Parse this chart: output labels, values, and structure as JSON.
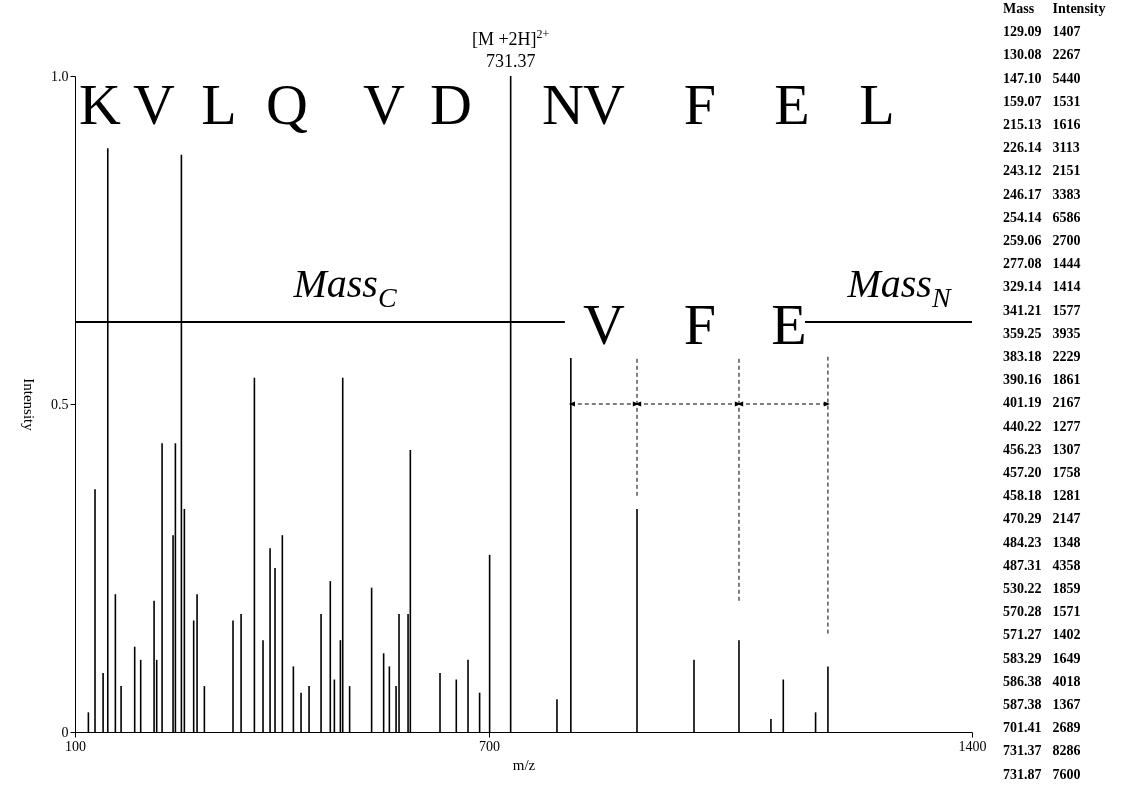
{
  "chart_data": {
    "type": "bar",
    "xlabel": "m/z",
    "ylabel": "Intensity",
    "color": "#000000",
    "x": [
      119.4,
      129,
      140.7,
      147.5,
      158.5,
      166.8,
      186.5,
      195.2,
      214.6,
      218.4,
      226.2,
      242.1,
      245.5,
      254.2,
      258.5,
      272,
      276.9,
      287.5,
      329,
      340.7,
      360,
      372.5,
      382.7,
      389.9,
      400.5,
      416.5,
      427.6,
      439.2,
      456.6,
      470,
      475.9,
      484.6,
      488,
      498,
      529.9,
      547.3,
      555.6,
      565.3,
      569.6,
      582.7,
      586,
      629,
      652.6,
      669.6,
      686.4,
      700.9,
      731.4,
      798.5,
      818.6,
      914.5,
      997.1,
      1062.3,
      1108.6,
      1126.5,
      1173.3,
      1191.2
    ],
    "values": [
      0.03,
      0.37,
      0.09,
      0.89,
      0.21,
      0.07,
      0.13,
      0.11,
      0.2,
      0.11,
      0.44,
      0.3,
      0.44,
      0.88,
      0.34,
      0.17,
      0.21,
      0.07,
      0.17,
      0.18,
      0.54,
      0.14,
      0.28,
      0.25,
      0.3,
      0.1,
      0.06,
      0.07,
      0.18,
      0.23,
      0.08,
      0.14,
      0.54,
      0.07,
      0.22,
      0.12,
      0.1,
      0.07,
      0.18,
      0.18,
      0.43,
      0.09,
      0.08,
      0.11,
      0.06,
      0.27,
      1.0,
      0.05,
      0.57,
      0.34,
      0.11,
      0.14,
      0.02,
      0.08,
      0.03,
      0.1
    ],
    "xlim": [
      100,
      1400
    ],
    "xticks": [
      100,
      700,
      1400
    ],
    "ylim": [
      0,
      1
    ],
    "yticks": [
      0,
      0.5,
      {
        "value": 1,
        "label": "1.0"
      }
    ],
    "grid": false,
    "annotations": [
      "K",
      "V",
      "L",
      "Q",
      "V",
      "D",
      "N",
      "V",
      "F",
      "E",
      "L",
      "Mass$_{C}$",
      "V",
      "F",
      "E",
      "Mass$_{N}$",
      {
        "text": "[M +2H]$^{2+}$\n731.37",
        "x": 731.4,
        "y": 1.0
      },
      "Mass Intensity",
      "129.09 1407",
      "130.08 2267",
      "147.10 5440",
      "159.07 1531",
      "215.13 1616",
      "226.14 3113",
      "243.12 2151",
      "246.17 3383",
      "254.14 6586",
      "259.06 2700",
      "277.08 1444",
      "329.14 1414",
      "341.21 1577",
      "359.25 3935",
      "383.18 2229",
      "390.16 1861",
      "401.19 2167",
      "440.22 1277",
      "456.23 1307",
      "457.20 1758",
      "458.18 1281",
      "470.29 2147",
      "484.23 1348",
      "487.31 4358",
      "530.22 1859",
      "570.28 1571",
      "571.27 1402",
      "583.29 1649",
      "586.38 4018",
      "587.38 1367",
      "701.41 2689",
      "731.37 8286",
      "731.87 7600"
    ]
  }
}
